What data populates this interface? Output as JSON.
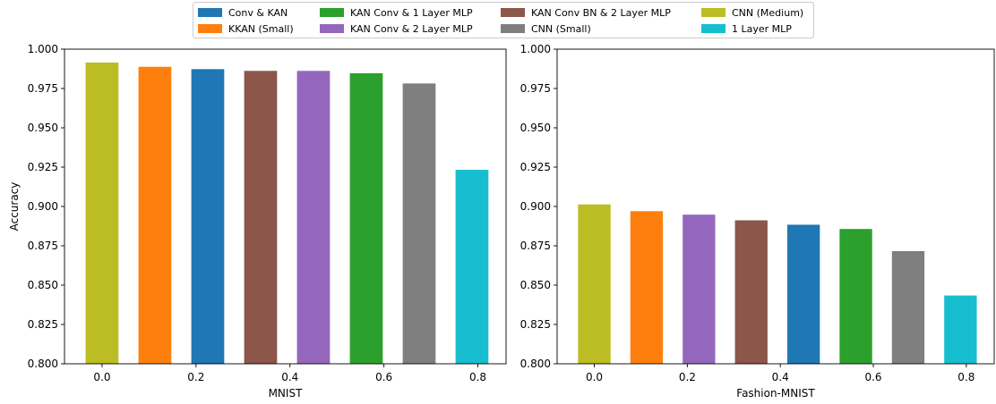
{
  "colors": {
    "Conv & KAN": "#1f77b4",
    "KKAN (Small)": "#ff7f0e",
    "KAN Conv & 1 Layer MLP": "#2ca02c",
    "KAN Conv & 2 Layer MLP": "#9467bd",
    "KAN Conv BN & 2 Layer MLP": "#8c564b",
    "CNN (Small)": "#7f7f7f",
    "CNN (Medium)": "#bcbd22",
    "1 Layer MLP": "#17becf"
  },
  "legend": {
    "placement": "top-center",
    "columns": 4,
    "entries": [
      "Conv & KAN",
      "KKAN (Small)",
      "KAN Conv & 1 Layer MLP",
      "KAN Conv & 2 Layer MLP",
      "KAN Conv BN & 2 Layer MLP",
      "CNN (Small)",
      "CNN (Medium)",
      "1 Layer MLP"
    ]
  },
  "chart_data": [
    {
      "type": "bar",
      "xlabel": "MNIST",
      "ylabel": "Accuracy",
      "xlim": [
        -0.08,
        0.86
      ],
      "ylim": [
        0.8,
        1.0
      ],
      "xticks": [
        0.0,
        0.2,
        0.4,
        0.6,
        0.8
      ],
      "xtick_labels": [
        "0.0",
        "0.2",
        "0.4",
        "0.6",
        "0.8"
      ],
      "yticks": [
        0.8,
        0.825,
        0.85,
        0.875,
        0.9,
        0.925,
        0.95,
        0.975,
        1.0
      ],
      "ytick_labels": [
        "0.800",
        "0.825",
        "0.850",
        "0.875",
        "0.900",
        "0.925",
        "0.950",
        "0.975",
        "1.000"
      ],
      "grid": false,
      "bar_width": 0.07,
      "bars": [
        {
          "model": "CNN (Medium)",
          "x": 0.0,
          "value": 0.9915
        },
        {
          "model": "KKAN (Small)",
          "x": 0.1125,
          "value": 0.9888
        },
        {
          "model": "Conv & KAN",
          "x": 0.225,
          "value": 0.9873
        },
        {
          "model": "KAN Conv BN & 2 Layer MLP",
          "x": 0.3375,
          "value": 0.9862
        },
        {
          "model": "KAN Conv & 2 Layer MLP",
          "x": 0.45,
          "value": 0.9862
        },
        {
          "model": "KAN Conv & 1 Layer MLP",
          "x": 0.5625,
          "value": 0.9847
        },
        {
          "model": "CNN (Small)",
          "x": 0.675,
          "value": 0.9782
        },
        {
          "model": "1 Layer MLP",
          "x": 0.7875,
          "value": 0.9233
        }
      ]
    },
    {
      "type": "bar",
      "xlabel": "Fashion-MNIST",
      "ylabel": "",
      "xlim": [
        -0.08,
        0.86
      ],
      "ylim": [
        0.8,
        1.0
      ],
      "xticks": [
        0.0,
        0.2,
        0.4,
        0.6,
        0.8
      ],
      "xtick_labels": [
        "0.0",
        "0.2",
        "0.4",
        "0.6",
        "0.8"
      ],
      "yticks": [
        0.8,
        0.825,
        0.85,
        0.875,
        0.9,
        0.925,
        0.95,
        0.975,
        1.0
      ],
      "ytick_labels": [
        "0.800",
        "0.825",
        "0.850",
        "0.875",
        "0.900",
        "0.925",
        "0.950",
        "0.975",
        "1.000"
      ],
      "grid": false,
      "bar_width": 0.07,
      "bars": [
        {
          "model": "CNN (Medium)",
          "x": 0.0,
          "value": 0.9013
        },
        {
          "model": "KKAN (Small)",
          "x": 0.1125,
          "value": 0.897
        },
        {
          "model": "KAN Conv & 2 Layer MLP",
          "x": 0.225,
          "value": 0.8948
        },
        {
          "model": "KAN Conv BN & 2 Layer MLP",
          "x": 0.3375,
          "value": 0.8912
        },
        {
          "model": "Conv & KAN",
          "x": 0.45,
          "value": 0.8884
        },
        {
          "model": "KAN Conv & 1 Layer MLP",
          "x": 0.5625,
          "value": 0.8857
        },
        {
          "model": "CNN (Small)",
          "x": 0.675,
          "value": 0.8716
        },
        {
          "model": "1 Layer MLP",
          "x": 0.7875,
          "value": 0.8434
        }
      ]
    }
  ]
}
